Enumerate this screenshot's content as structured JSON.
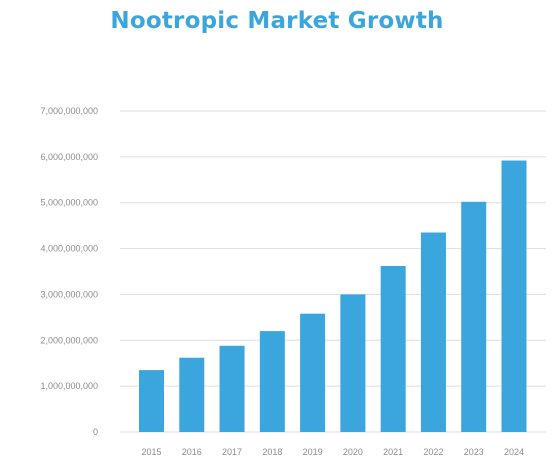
{
  "chart_data": {
    "type": "bar",
    "title": "Nootropic Market Growth",
    "xlabel": "",
    "ylabel": "",
    "categories": [
      "2015",
      "2016",
      "2017",
      "2018",
      "2019",
      "2020",
      "2021",
      "2022",
      "2023",
      "2024"
    ],
    "values": [
      1350000000,
      1620000000,
      1880000000,
      2200000000,
      2580000000,
      3000000000,
      3620000000,
      4350000000,
      5020000000,
      5920000000
    ],
    "ylim": [
      0,
      7000000000
    ],
    "yticks": [
      "0",
      "1,000,000,000",
      "2,000,000,000",
      "3,000,000,000",
      "4,000,000,000",
      "5,000,000,000",
      "6,000,000,000",
      "7,000,000,000"
    ],
    "grid": true,
    "legend": "none",
    "bar_color": "#3aa6dd",
    "grid_color": "#dedede",
    "title_color": "#3aa6dd"
  }
}
